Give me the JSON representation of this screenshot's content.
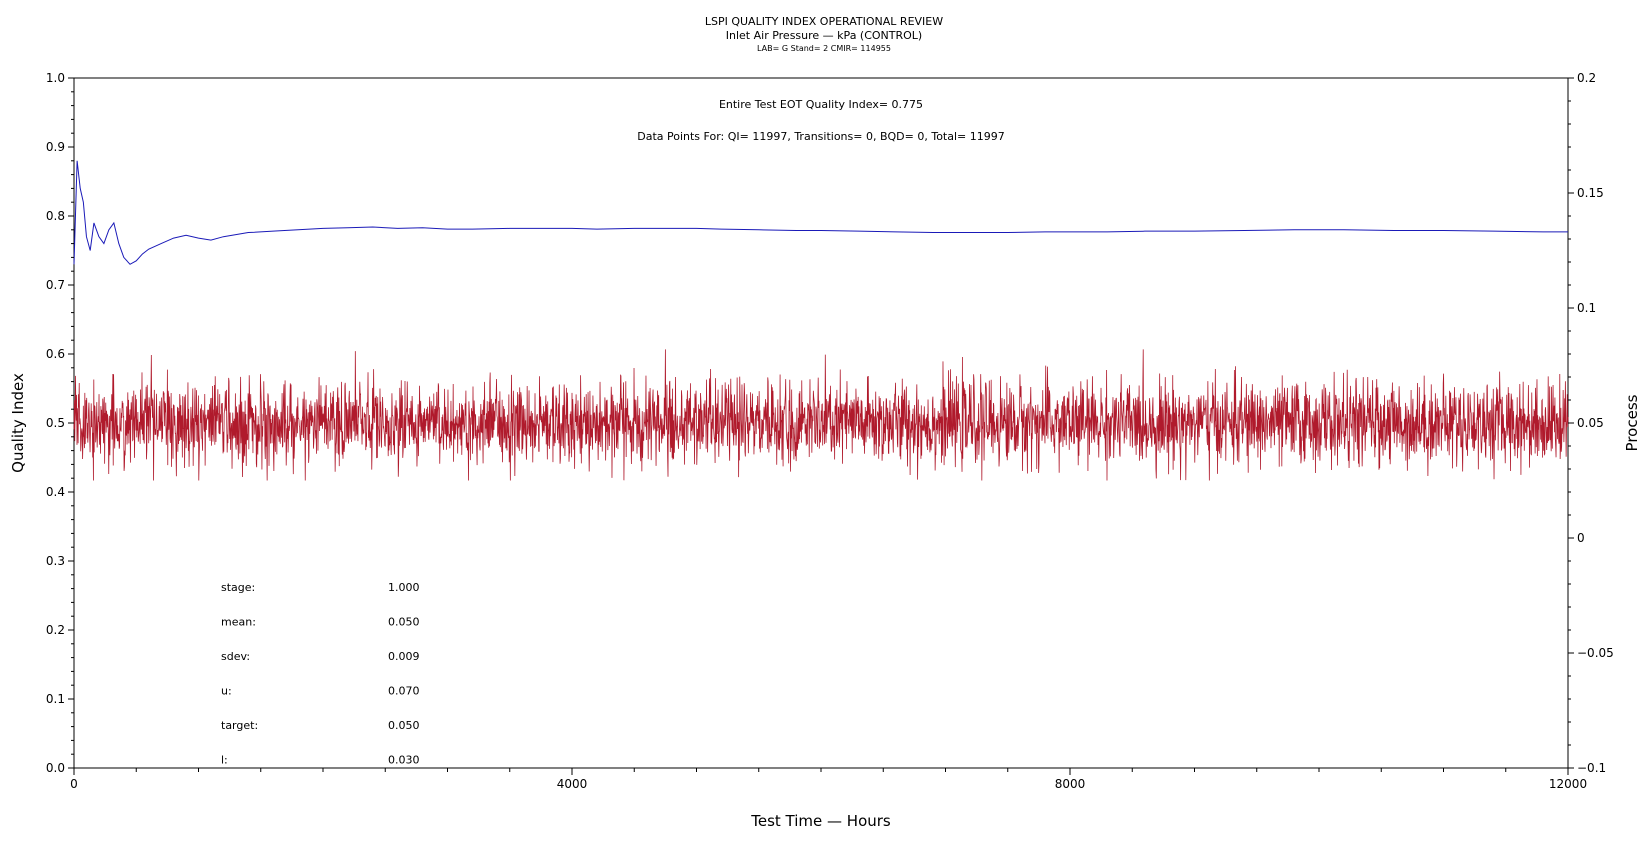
{
  "chart_data": {
    "type": "line",
    "title": "LSPI QUALITY INDEX OPERATIONAL REVIEW",
    "subtitle": "Inlet Air Pressure — kPa (CONTROL)",
    "subtitle2": "LAB= G Stand= 2 CMIR= 114955",
    "annotation_qi": "Entire Test EOT Quality Index=   0.775",
    "annotation_points": "Data Points For: QI= 11997, Transitions=     0, BQD=     0, Total= 11997",
    "xlabel": "Test Time — Hours",
    "ylabel_left": "Quality Index",
    "ylabel_right": "Process",
    "xlim": [
      0,
      12000
    ],
    "ylim_left": [
      0.0,
      1.0
    ],
    "ylim_right": [
      -0.1,
      0.2
    ],
    "xticks": [
      0,
      4000,
      8000,
      12000
    ],
    "xtick_labels": [
      "0",
      "4000",
      "8000",
      "12000"
    ],
    "yticks_left": [
      0.0,
      0.1,
      0.2,
      0.3,
      0.4,
      0.5,
      0.6,
      0.7,
      0.8,
      0.9,
      1.0
    ],
    "ytick_labels_left": [
      "0.0",
      "0.1",
      "0.2",
      "0.3",
      "0.4",
      "0.5",
      "0.6",
      "0.7",
      "0.8",
      "0.9",
      "1.0"
    ],
    "yticks_right": [
      -0.1,
      -0.05,
      0,
      0.05,
      0.1,
      0.15,
      0.2
    ],
    "ytick_labels_right": [
      "-0.1",
      "-0.05",
      "0",
      "0.05",
      "0.1",
      "0.15",
      "0.2"
    ],
    "grid": false,
    "series": [
      {
        "axis": "left",
        "color": "#1a1ab8",
        "x": [
          0,
          25,
          50,
          75,
          100,
          130,
          160,
          200,
          240,
          280,
          320,
          360,
          400,
          450,
          500,
          550,
          600,
          700,
          800,
          900,
          1000,
          1100,
          1200,
          1400,
          1600,
          1800,
          2000,
          2200,
          2400,
          2600,
          2800,
          3000,
          3200,
          3500,
          3800,
          4000,
          4200,
          4500,
          4800,
          5000,
          5200,
          5500,
          5800,
          6000,
          6300,
          6600,
          6900,
          7200,
          7500,
          7800,
          8000,
          8300,
          8600,
          9000,
          9400,
          9800,
          10200,
          10600,
          11000,
          11400,
          11800,
          12000
        ],
        "y": [
          0.73,
          0.88,
          0.84,
          0.82,
          0.77,
          0.75,
          0.79,
          0.77,
          0.76,
          0.78,
          0.79,
          0.76,
          0.74,
          0.73,
          0.735,
          0.745,
          0.752,
          0.76,
          0.768,
          0.772,
          0.768,
          0.765,
          0.77,
          0.776,
          0.778,
          0.78,
          0.782,
          0.783,
          0.784,
          0.782,
          0.783,
          0.781,
          0.781,
          0.782,
          0.782,
          0.782,
          0.781,
          0.782,
          0.782,
          0.782,
          0.781,
          0.78,
          0.779,
          0.779,
          0.778,
          0.777,
          0.776,
          0.776,
          0.776,
          0.777,
          0.777,
          0.777,
          0.778,
          0.778,
          0.779,
          0.78,
          0.78,
          0.779,
          0.779,
          0.778,
          0.777,
          0.777
        ]
      },
      {
        "axis": "right",
        "color": "#b01a2c",
        "x_start": 0,
        "x_end": 12000,
        "count": 11997,
        "mean": 0.05,
        "sdev": 0.009
      }
    ],
    "stats": [
      {
        "label": "stage:",
        "value": "1.000"
      },
      {
        "label": "mean:",
        "value": "0.050"
      },
      {
        "label": "sdev:",
        "value": "0.009"
      },
      {
        "label": "u:",
        "value": "0.070"
      },
      {
        "label": "target:",
        "value": "0.050"
      },
      {
        "label": "l:",
        "value": "0.030"
      }
    ]
  }
}
